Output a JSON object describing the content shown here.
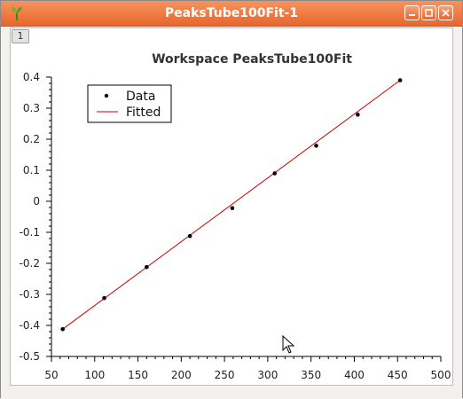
{
  "window": {
    "title": "PeaksTube100Fit-1",
    "layer_label": "1"
  },
  "icons": {
    "app": "mantid-app-icon",
    "minimize": "minimize-icon",
    "maximize": "maximize-icon",
    "close": "close-icon",
    "cursor": "mouse-cursor-icon"
  },
  "colors": {
    "titlebar": "#e8662c",
    "fit_line": "#cc0000",
    "data_marker": "#000000"
  },
  "chart_data": {
    "type": "scatter",
    "title": "Workspace PeaksTube100Fit",
    "xlabel": "",
    "ylabel": "",
    "xlim": [
      50,
      500
    ],
    "ylim": [
      -0.5,
      0.4
    ],
    "xticks": [
      50,
      100,
      150,
      200,
      250,
      300,
      350,
      400,
      450,
      500
    ],
    "yticks": [
      0.4,
      0.3,
      0.2,
      0.1,
      0,
      -0.1,
      -0.2,
      -0.3,
      -0.4,
      -0.5
    ],
    "xtick_labels": [
      "50",
      "100",
      "150",
      "200",
      "250",
      "300",
      "350",
      "400",
      "450",
      "500"
    ],
    "ytick_labels": [
      "0.4",
      "0.3",
      "0.2",
      "0.1",
      "0",
      "-0.1",
      "-0.2",
      "-0.3",
      "-0.4",
      "-0.5"
    ],
    "legend_position": "top-left",
    "series": [
      {
        "name": "Data",
        "style": "markers",
        "x": [
          63,
          111,
          160,
          210,
          259,
          308,
          356,
          404,
          453
        ],
        "y": [
          -0.412,
          -0.312,
          -0.212,
          -0.112,
          -0.022,
          0.09,
          0.179,
          0.279,
          0.39
        ]
      },
      {
        "name": "Fitted",
        "style": "line",
        "x": [
          63,
          453
        ],
        "y": [
          -0.412,
          0.39
        ]
      }
    ]
  }
}
